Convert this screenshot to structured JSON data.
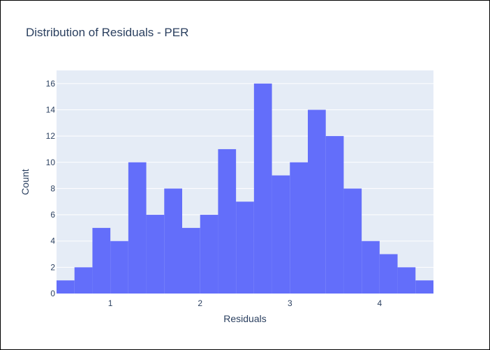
{
  "chart_data": {
    "type": "bar",
    "title": "Distribution of Residuals - PER",
    "xlabel": "Residuals",
    "ylabel": "Count",
    "bin_edges": [
      0.4,
      0.6,
      0.8,
      1.0,
      1.2,
      1.4,
      1.6,
      1.8,
      2.0,
      2.2,
      2.4,
      2.6,
      2.8,
      3.0,
      3.2,
      3.4,
      3.6,
      3.8,
      4.0,
      4.2,
      4.4,
      4.6
    ],
    "values": [
      1,
      2,
      5,
      4,
      10,
      6,
      8,
      5,
      6,
      11,
      7,
      16,
      9,
      10,
      14,
      12,
      8,
      4,
      3,
      2,
      1
    ],
    "xlim": [
      0.4,
      4.6
    ],
    "ylim": [
      0,
      17
    ],
    "x_ticks": [
      1,
      2,
      3,
      4
    ],
    "y_ticks": [
      0,
      2,
      4,
      6,
      8,
      10,
      12,
      14,
      16
    ],
    "grid": true,
    "colors": {
      "bar": "#636efa",
      "plot_bg": "#e5ecf6",
      "grid": "#ffffff",
      "text": "#2a3f5f"
    }
  }
}
